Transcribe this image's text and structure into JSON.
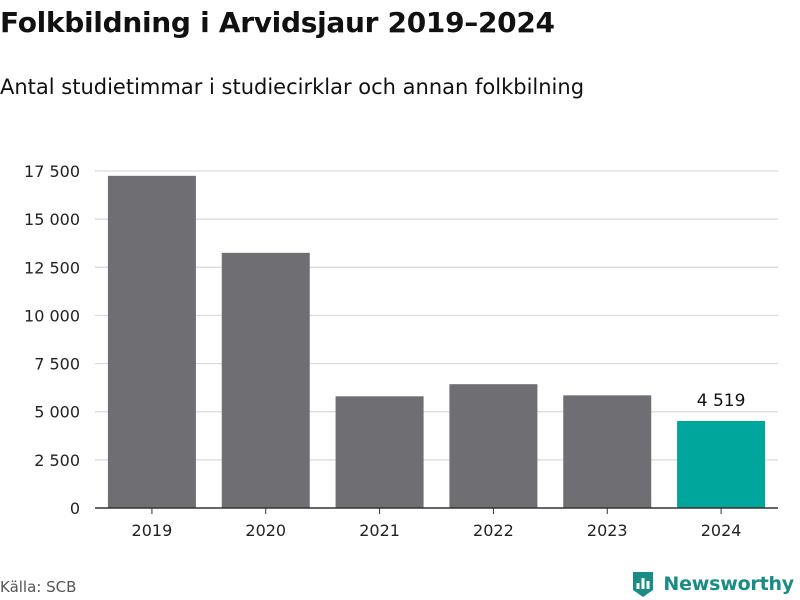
{
  "header": {
    "title": "Folkbildning i Arvidsjaur 2019–2024",
    "subtitle": "Antal studietimmar i studiecirklar och annan folkbilning"
  },
  "footer": {
    "source": "Källa: SCB",
    "brand": "Newsworthy",
    "brand_icon": "bar-chart-shield-icon"
  },
  "colors": {
    "bar": "#6e6e73",
    "highlight": "#00a69c",
    "grid": "#d9d9d9",
    "brand": "#1a8c86"
  },
  "chart_data": {
    "type": "bar",
    "title": "Folkbildning i Arvidsjaur 2019–2024",
    "subtitle": "Antal studietimmar i studiecirklar och annan folkbilning",
    "categories": [
      "2019",
      "2020",
      "2021",
      "2022",
      "2023",
      "2024"
    ],
    "values": [
      17250,
      13250,
      5800,
      6430,
      5850,
      4519
    ],
    "highlight_index": 5,
    "data_labels": [
      {
        "index": 5,
        "text": "4 519"
      }
    ],
    "yticks": [
      {
        "value": 0,
        "label": "0"
      },
      {
        "value": 2500,
        "label": "2 500"
      },
      {
        "value": 5000,
        "label": "5 000"
      },
      {
        "value": 7500,
        "label": "7 500"
      },
      {
        "value": 10000,
        "label": "10 000"
      },
      {
        "value": 12500,
        "label": "12 500"
      },
      {
        "value": 15000,
        "label": "15 000"
      },
      {
        "value": 17500,
        "label": "17 500"
      }
    ],
    "ylim": [
      0,
      17500
    ],
    "xlabel": "",
    "ylabel": "",
    "grid": true,
    "legend": "none"
  }
}
